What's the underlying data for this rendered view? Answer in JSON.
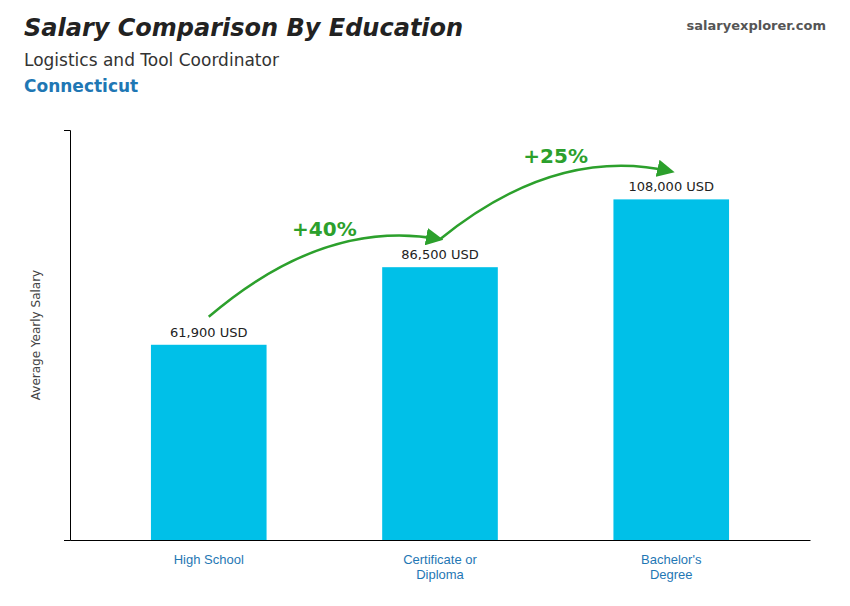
{
  "chart_data": {
    "type": "bar",
    "title": "Salary Comparison By Education",
    "subtitle": "Logistics and Tool Coordinator",
    "annotations": [
      "Connecticut",
      "salaryexplorer.com"
    ],
    "ylabel": "Average Yearly Salary",
    "categories": [
      "High School",
      "Certificate or\nDiploma",
      "Bachelor's\nDegree"
    ],
    "values": [
      61900,
      86500,
      108000
    ],
    "value_labels": [
      "61,900 USD",
      "86,500 USD",
      "108,000 USD"
    ],
    "data_labels": true,
    "growth_labels": [
      "+40%",
      "+25%"
    ],
    "color": "#00c0e8",
    "ylim": [
      0,
      130000
    ],
    "grid": false,
    "tick_labels": "x"
  }
}
